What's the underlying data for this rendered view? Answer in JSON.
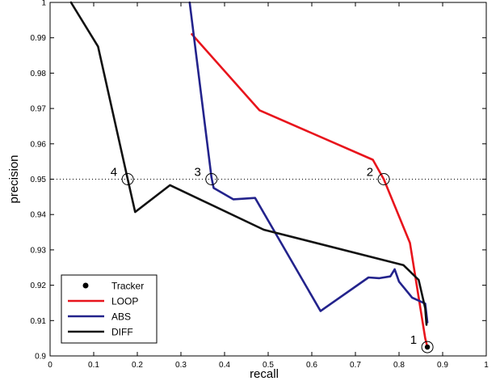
{
  "chart_data": {
    "type": "line",
    "title": "",
    "xlabel": "recall",
    "ylabel": "precision",
    "xlim": [
      0,
      1
    ],
    "ylim": [
      0.9,
      1
    ],
    "xticks": [
      "0",
      "0.1",
      "0.2",
      "0.3",
      "0.4",
      "0.5",
      "0.6",
      "0.7",
      "0.8",
      "0.9",
      "1"
    ],
    "yticks": [
      "0.9",
      "0.91",
      "0.92",
      "0.93",
      "0.94",
      "0.95",
      "0.96",
      "0.97",
      "0.98",
      "0.99",
      "1"
    ],
    "grid": false,
    "reference_line": {
      "y": 0.95,
      "style": "dotted"
    },
    "legend": {
      "position": "bottom-left",
      "entries": [
        "Tracker",
        "LOOP",
        "ABS",
        "DIFF"
      ]
    },
    "series": [
      {
        "name": "LOOP",
        "color": "#e8141c",
        "points": [
          [
            0.325,
            0.991
          ],
          [
            0.48,
            0.9695
          ],
          [
            0.74,
            0.9555
          ],
          [
            0.765,
            0.95
          ],
          [
            0.825,
            0.932
          ],
          [
            0.86,
            0.905
          ],
          [
            0.865,
            0.9025
          ]
        ]
      },
      {
        "name": "ABS",
        "color": "#23238c",
        "points": [
          [
            0.32,
            1.0
          ],
          [
            0.37,
            0.9505
          ],
          [
            0.375,
            0.9475
          ],
          [
            0.42,
            0.9443
          ],
          [
            0.47,
            0.9447
          ],
          [
            0.62,
            0.9127
          ],
          [
            0.73,
            0.9222
          ],
          [
            0.755,
            0.922
          ],
          [
            0.78,
            0.9225
          ],
          [
            0.79,
            0.9245
          ],
          [
            0.8,
            0.921
          ],
          [
            0.83,
            0.9165
          ],
          [
            0.86,
            0.9148
          ],
          [
            0.865,
            0.9095
          ]
        ]
      },
      {
        "name": "DIFF",
        "color": "#111111",
        "points": [
          [
            0.048,
            1.0
          ],
          [
            0.11,
            0.9875
          ],
          [
            0.178,
            0.95
          ],
          [
            0.195,
            0.9407
          ],
          [
            0.275,
            0.9483
          ],
          [
            0.49,
            0.9357
          ],
          [
            0.81,
            0.9257
          ],
          [
            0.845,
            0.9215
          ],
          [
            0.86,
            0.9135
          ],
          [
            0.863,
            0.9088
          ]
        ]
      }
    ],
    "markers": [
      {
        "label": "1",
        "x": 0.865,
        "y": 0.9025,
        "filled": true
      },
      {
        "label": "2",
        "x": 0.765,
        "y": 0.95,
        "filled": false
      },
      {
        "label": "3",
        "x": 0.37,
        "y": 0.95,
        "filled": false
      },
      {
        "label": "4",
        "x": 0.178,
        "y": 0.95,
        "filled": false
      }
    ]
  }
}
